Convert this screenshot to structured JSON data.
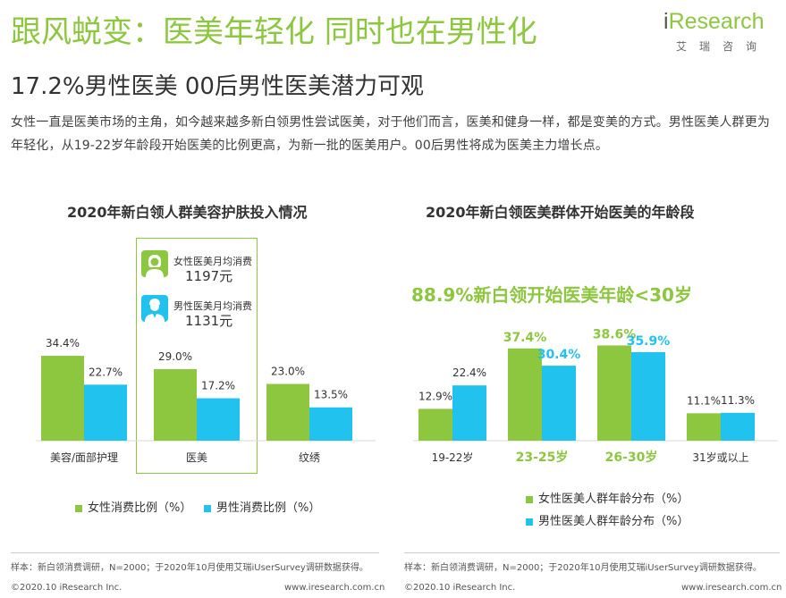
{
  "header": {
    "title": "跟风蜕变：医美年轻化 同时也在男性化",
    "subtitle": "17.2%男性医美 00后男性医美潜力可观",
    "description": "女性一直是医美市场的主角，如今越来越多新白领男性尝试医美，对于他们而言，医美和健身一样，都是变美的方式。男性医美人群更为年轻化，从19-22岁年龄段开始医美的比例更高，为新一批的医美用户。00后男性将成为医美主力增长点。"
  },
  "logo": {
    "i": "i",
    "word": "Research",
    "sub": "艾瑞咨询"
  },
  "colors": {
    "green": "#8dc63f",
    "blue": "#22c2ee",
    "axis": "#d9d9d9"
  },
  "chart_left_annotations": {
    "female_label": "女性医美月均消费",
    "female_value": "1197元",
    "male_label": "男性医美月均消费",
    "male_value": "1131元",
    "female_icon": "female-person-icon",
    "male_icon": "male-person-icon"
  },
  "chart_right_headline": "88.9%新白领开始医美年龄<30岁",
  "chart_data": [
    {
      "type": "bar",
      "title": "2020年新白领人群美容护肤投入情况",
      "categories": [
        "美容/面部护理",
        "医美",
        "纹绣"
      ],
      "series": [
        {
          "name": "女性消费比例（%）",
          "values": [
            34.4,
            29.0,
            23.0
          ],
          "labels": [
            "34.4%",
            "29.0%",
            "23.0%"
          ]
        },
        {
          "name": "男性消费比例（%）",
          "values": [
            22.7,
            17.2,
            13.5
          ],
          "labels": [
            "22.7%",
            "17.2%",
            "13.5%"
          ]
        }
      ],
      "ylim": [
        0,
        40
      ],
      "legend": "bottom"
    },
    {
      "type": "bar",
      "title": "2020年新白领医美群体开始医美的年龄段",
      "categories": [
        "19-22岁",
        "23-25岁",
        "26-30岁",
        "31岁或以上"
      ],
      "series": [
        {
          "name": "女性医美人群年龄分布（%）",
          "values": [
            12.9,
            37.4,
            38.6,
            11.1
          ],
          "labels": [
            "12.9%",
            "37.4%",
            "38.6%",
            "11.1%"
          ]
        },
        {
          "name": "男性医美人群年龄分布（%）",
          "values": [
            22.4,
            30.4,
            35.9,
            11.3
          ],
          "labels": [
            "22.4%",
            "30.4%",
            "35.9%",
            "11.3%"
          ]
        }
      ],
      "highlighted_categories": [
        "23-25岁",
        "26-30岁"
      ],
      "ylim": [
        0,
        40
      ],
      "legend": "bottom"
    }
  ],
  "footer": {
    "note_left": "样本：新白领消费调研，N=2000；于2020年10月使用艾瑞iUserSurvey调研数据获得。",
    "note_right": "样本：新白领消费调研，N=2000；于2020年10月使用艾瑞iUserSurvey调研数据获得。",
    "copyright_left": "©2020.10 iResearch Inc.",
    "site_left": "www.iresearch.com.cn",
    "copyright_right": "©2020.10 iResearch Inc.",
    "site_right": "www.iresearch.com.cn"
  }
}
